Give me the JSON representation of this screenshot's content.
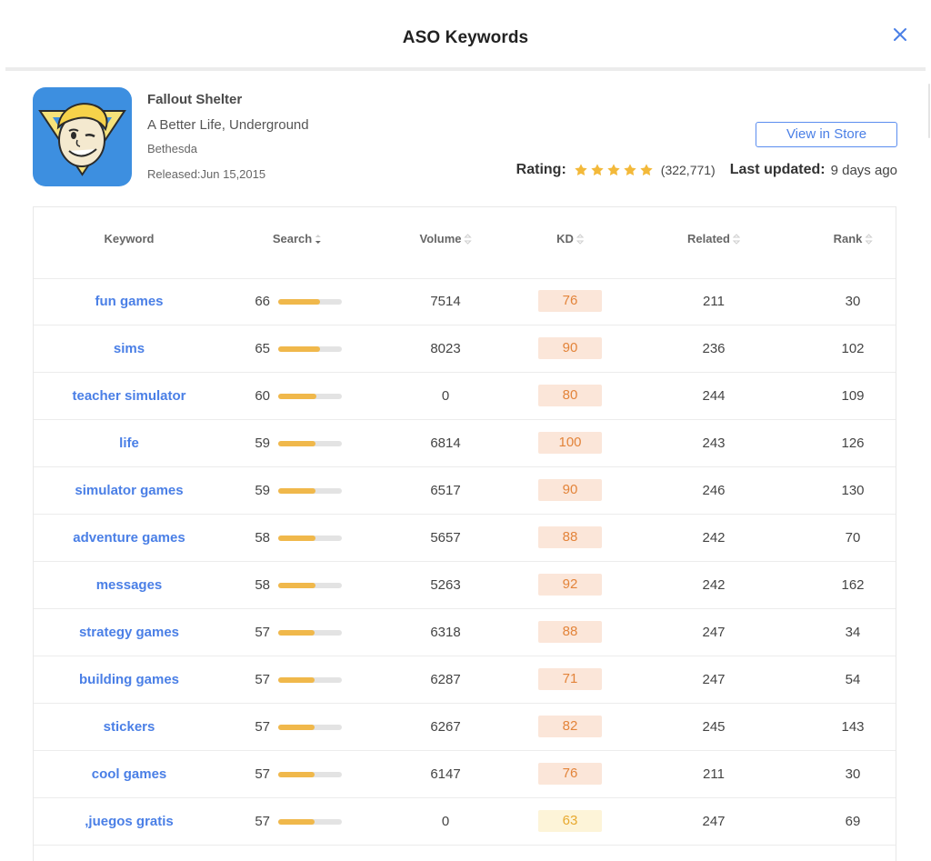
{
  "modal": {
    "title": "ASO Keywords",
    "close_icon": "close-icon"
  },
  "app": {
    "icon": "vault-boy-app-icon",
    "name": "Fallout Shelter",
    "subtitle": "A Better Life, Underground",
    "developer": "Bethesda",
    "released": "Released:Jun 15,2015",
    "store_button": "View in Store",
    "rating_label": "Rating:",
    "rating_stars": 5,
    "rating_count": "(322,771)",
    "updated_label": "Last updated:",
    "updated_value": "9 days ago"
  },
  "table": {
    "columns": [
      "Keyword",
      "Search",
      "Volume",
      "KD",
      "Related",
      "Rank"
    ],
    "rows": [
      {
        "keyword": "fun games",
        "search": "66",
        "volume": "7514",
        "kd": "76",
        "related": "211",
        "rank": "30"
      },
      {
        "keyword": "sims",
        "search": "65",
        "volume": "8023",
        "kd": "90",
        "related": "236",
        "rank": "102"
      },
      {
        "keyword": "teacher simulator",
        "search": "60",
        "volume": "0",
        "kd": "80",
        "related": "244",
        "rank": "109"
      },
      {
        "keyword": "life",
        "search": "59",
        "volume": "6814",
        "kd": "100",
        "related": "243",
        "rank": "126"
      },
      {
        "keyword": "simulator games",
        "search": "59",
        "volume": "6517",
        "kd": "90",
        "related": "246",
        "rank": "130"
      },
      {
        "keyword": "adventure games",
        "search": "58",
        "volume": "5657",
        "kd": "88",
        "related": "242",
        "rank": "70"
      },
      {
        "keyword": "messages",
        "search": "58",
        "volume": "5263",
        "kd": "92",
        "related": "242",
        "rank": "162"
      },
      {
        "keyword": "strategy games",
        "search": "57",
        "volume": "6318",
        "kd": "88",
        "related": "247",
        "rank": "34"
      },
      {
        "keyword": "building games",
        "search": "57",
        "volume": "6287",
        "kd": "71",
        "related": "247",
        "rank": "54"
      },
      {
        "keyword": "stickers",
        "search": "57",
        "volume": "6267",
        "kd": "82",
        "related": "245",
        "rank": "143"
      },
      {
        "keyword": "cool games",
        "search": "57",
        "volume": "6147",
        "kd": "76",
        "related": "211",
        "rank": "30"
      },
      {
        "keyword": ",juegos gratis",
        "search": "57",
        "volume": "0",
        "kd": "63",
        "related": "247",
        "rank": "69"
      }
    ]
  },
  "colors": {
    "accent": "#4a7fe6",
    "bar_fill": "#f0b84b",
    "kd_high_bg": "#fbe6d9",
    "kd_high_text": "#e3843a",
    "kd_med_bg": "#fdf4d8",
    "kd_med_text": "#e8a92f",
    "star": "#f3b93a"
  }
}
